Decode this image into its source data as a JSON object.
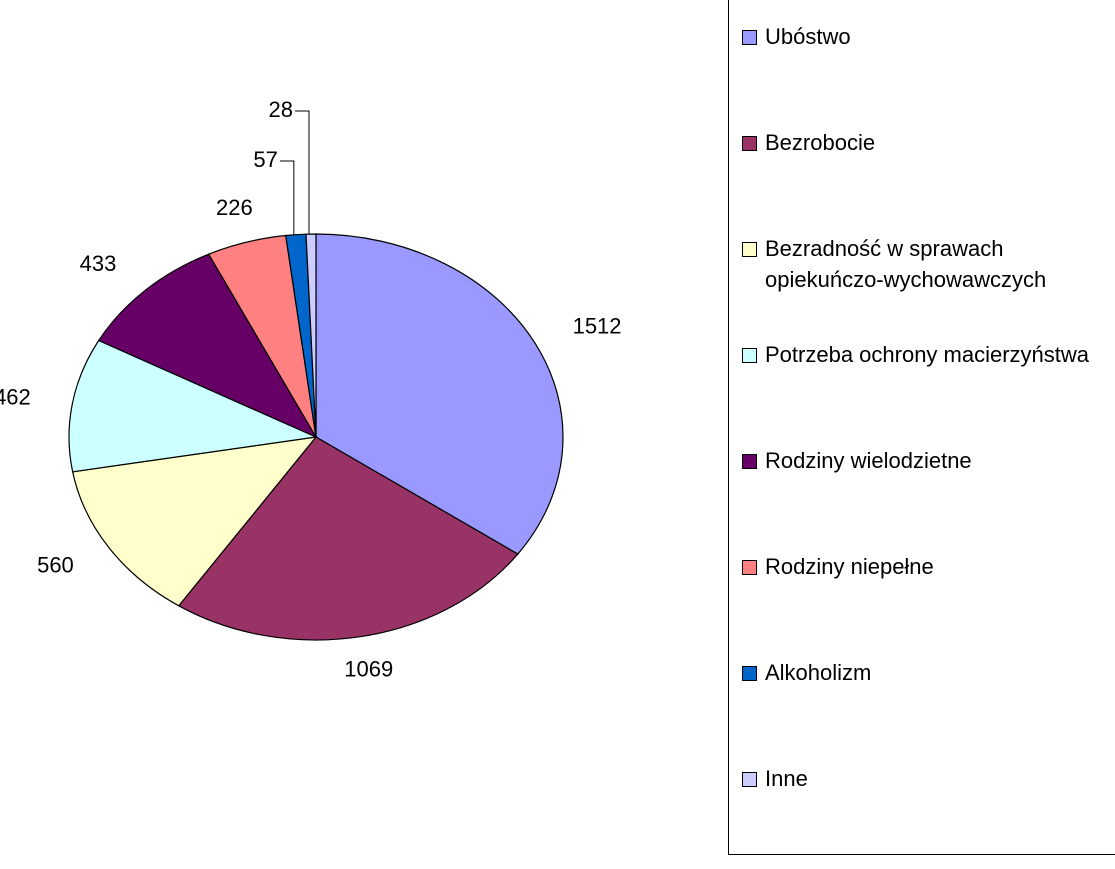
{
  "chart_data": {
    "type": "pie",
    "categories": [
      "Ubóstwo",
      "Bezrobocie",
      "Bezradność w sprawach opiekuńczo-wychowawczych",
      "Potrzeba ochrony macierzyństwa",
      "Rodziny wielodzietne",
      "Rodziny niepełne",
      "Alkoholizm",
      "Inne"
    ],
    "values": [
      1512,
      1069,
      560,
      462,
      433,
      226,
      57,
      28
    ],
    "colors": [
      "#9999ff",
      "#993366",
      "#ffffcc",
      "#ccffff",
      "#660066",
      "#ff8080",
      "#0066cc",
      "#ccccff"
    ],
    "legend": "right"
  }
}
